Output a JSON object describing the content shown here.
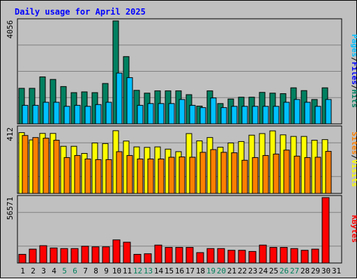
{
  "title": "Daily usage for April 2025",
  "colors": {
    "title": "#0000ff",
    "hits": "#00c0ff",
    "files": "#008060",
    "visits": "#ffff00",
    "sites": "#ff8000",
    "kbytes": "#ff0000",
    "weekend_label": "#00805c",
    "weekday_label": "#000000",
    "panel_bg": "#c0c0c0"
  },
  "chart_data": {
    "type": "bar",
    "title": "Daily usage for April 2025",
    "categories": [
      "1",
      "2",
      "3",
      "4",
      "5",
      "6",
      "7",
      "8",
      "9",
      "10",
      "11",
      "12",
      "13",
      "14",
      "15",
      "16",
      "17",
      "18",
      "19",
      "20",
      "21",
      "22",
      "23",
      "24",
      "25",
      "26",
      "27",
      "28",
      "29",
      "30",
      "31"
    ],
    "weekend_days": [
      "5",
      "6",
      "12",
      "13",
      "19",
      "20",
      "26",
      "27"
    ],
    "panels": [
      {
        "name": "pages-files-hits",
        "ymax_label": "4056",
        "ymax": 4056,
        "legend": [
          {
            "text": "Pages",
            "color": "#00c0ff"
          },
          {
            "text": "/",
            "color": "#000000"
          },
          {
            "text": "Files",
            "color": "#0000ff"
          },
          {
            "text": "/",
            "color": "#000000"
          },
          {
            "text": "Hits",
            "color": "#008060"
          }
        ],
        "series": [
          {
            "name": "Hits",
            "color": "#008060",
            "values": [
              1400,
              1400,
              1850,
              1750,
              1470,
              1230,
              1260,
              1230,
              1590,
              4056,
              2650,
              1320,
              1210,
              1300,
              1300,
              1300,
              1150,
              700,
              1300,
              800,
              980,
              1050,
              1050,
              1240,
              1210,
              1190,
              1420,
              1310,
              960,
              1420,
              0
            ]
          },
          {
            "name": "Pages",
            "color": "#00c0ff",
            "values": [
              730,
              730,
              850,
              850,
              690,
              730,
              690,
              760,
              850,
              2000,
              1820,
              730,
              800,
              800,
              800,
              960,
              730,
              640,
              1020,
              640,
              690,
              690,
              690,
              690,
              690,
              850,
              960,
              850,
              690,
              960,
              0
            ]
          }
        ]
      },
      {
        "name": "visits-sites",
        "ymax_label": "412",
        "ymax": 412,
        "legend": [
          {
            "text": "Sites",
            "color": "#ff8000"
          },
          {
            "text": "/",
            "color": "#000000"
          },
          {
            "text": "Visits",
            "color": "#ffff00"
          }
        ],
        "series": [
          {
            "name": "Visits",
            "color": "#ffff00",
            "values": [
              383,
              337,
              378,
              378,
              297,
              297,
              252,
              318,
              314,
              395,
              330,
              293,
              290,
              293,
              279,
              263,
              377,
              331,
              352,
              291,
              318,
              327,
              367,
              377,
              394,
              369,
              359,
              359,
              335,
              339,
              0
            ]
          },
          {
            "name": "Sites",
            "color": "#ff8000",
            "values": [
              365,
              352,
              348,
              335,
              226,
              239,
              217,
              213,
              213,
              263,
              239,
              217,
              217,
              217,
              228,
              230,
              228,
              259,
              276,
              259,
              256,
              209,
              226,
              239,
              248,
              273,
              235,
              226,
              228,
              265,
              0
            ]
          }
        ]
      },
      {
        "name": "kbytes",
        "ymax_label": "56571",
        "ymax": 56571,
        "legend": [
          {
            "text": "KBytes",
            "color": "#ff0000"
          }
        ],
        "series": [
          {
            "name": "KBytes",
            "color": "#ff0000",
            "values": [
              7500,
              12000,
              15000,
              13000,
              12500,
              12500,
              14500,
              14000,
              14000,
              20000,
              18000,
              7500,
              8000,
              15500,
              13500,
              13500,
              13500,
              9000,
              12500,
              12500,
              11000,
              11000,
              10000,
              15500,
              13500,
              13500,
              12500,
              11000,
              12000,
              56571,
              0
            ]
          }
        ]
      }
    ]
  }
}
